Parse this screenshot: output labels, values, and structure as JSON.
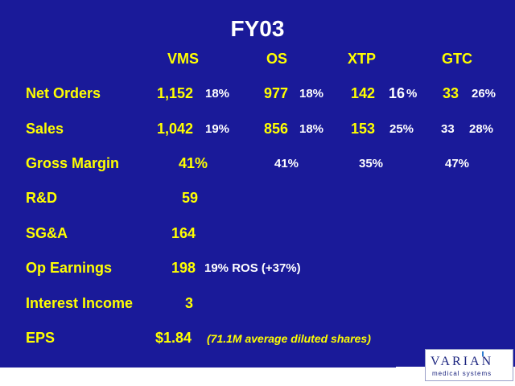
{
  "title": "FY03",
  "columns": [
    "VMS",
    "OS",
    "XTP",
    "GTC"
  ],
  "rows": [
    {
      "label": "Net Orders",
      "vms": {
        "value": "1,152",
        "pct": "18%"
      },
      "os": {
        "value": "977",
        "pct": "18%"
      },
      "xtp": {
        "value": "142",
        "pct_num": "16",
        "pct_sign": "%"
      },
      "gtc": {
        "value": "33",
        "pct": "26%"
      }
    },
    {
      "label": "Sales",
      "vms": {
        "value": "1,042",
        "pct": "19%"
      },
      "os": {
        "value": "856",
        "pct": "18%"
      },
      "xtp": {
        "value": "153",
        "pct": "25%"
      },
      "gtc": {
        "value": "33",
        "pct": "28%"
      }
    },
    {
      "label": "Gross Margin",
      "vms": "41%",
      "os": "41%",
      "xtp": "35%",
      "gtc": "47%"
    },
    {
      "label": "R&D",
      "value": "59"
    },
    {
      "label": "SG&A",
      "value": "164"
    },
    {
      "label": "Op Earnings",
      "value": "198",
      "note": "19% ROS (+37%)"
    },
    {
      "label": "Interest Income",
      "value": "3"
    },
    {
      "label": "EPS",
      "value": "$1.84",
      "note": "(71.1M average diluted shares)"
    }
  ],
  "logo": {
    "wordmark": "VARIAN",
    "subtitle": "medical systems"
  },
  "colors": {
    "background": "#1a1a99",
    "text_primary": "#ffff00",
    "text_secondary": "#ffffff"
  }
}
